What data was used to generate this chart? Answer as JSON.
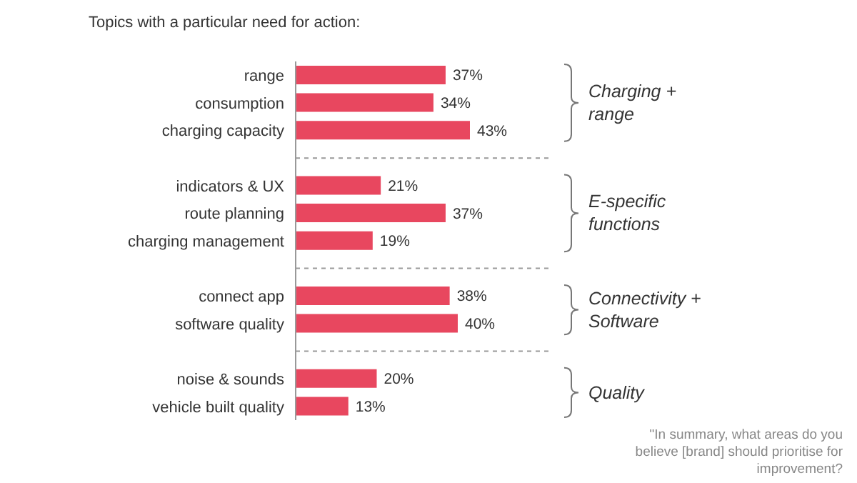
{
  "chart_data": {
    "type": "bar",
    "orientation": "horizontal",
    "title": "Topics with a particular need for action:",
    "categories": [
      "range",
      "consumption",
      "charging capacity",
      null,
      "indicators & UX",
      "route planning",
      "charging management",
      null,
      "connect app",
      "software quality",
      null,
      "noise & sounds",
      "vehicle built quality"
    ],
    "values": [
      37,
      34,
      43,
      null,
      21,
      37,
      19,
      null,
      38,
      40,
      null,
      20,
      13
    ],
    "value_labels": [
      "37%",
      "34%",
      "43%",
      null,
      "21%",
      "37%",
      "19%",
      null,
      "38%",
      "40%",
      null,
      "20%",
      "13%"
    ],
    "color": "#e8475f",
    "annotations": [
      "Charging + range",
      "E-specific functions",
      "Connectivity + Software",
      "Quality",
      "\"In summary, what areas do you believe [brand] should prioritise for improvement?"
    ]
  }
}
